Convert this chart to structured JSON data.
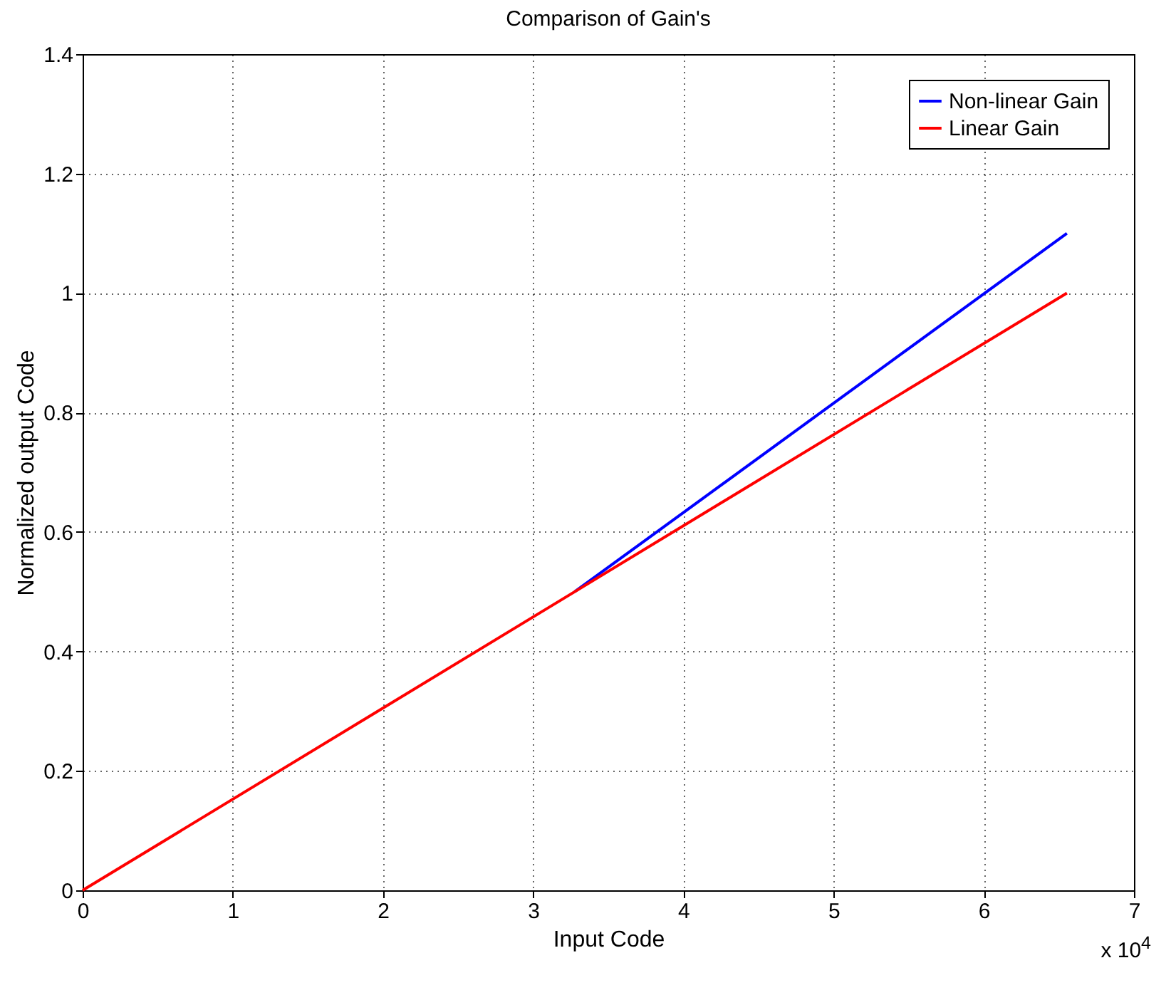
{
  "chart_data": {
    "type": "line",
    "title": "Comparison of Gain's",
    "xlabel": "Input Code",
    "ylabel": "Normalized output Code",
    "series": [
      {
        "name": "Non-linear Gain",
        "color": "#0000ff",
        "x": [
          3.2768,
          6.5535
        ],
        "values": [
          0.5,
          1.1
        ]
      },
      {
        "name": "Linear Gain",
        "color": "#ff0000",
        "x": [
          0,
          6.5535
        ],
        "values": [
          0,
          1
        ]
      }
    ],
    "xlim": [
      0,
      7
    ],
    "xticks": [
      0,
      1,
      2,
      3,
      4,
      5,
      6,
      7
    ],
    "ylim": [
      0,
      1.4
    ],
    "yticks": [
      0,
      0.2,
      0.4,
      0.6,
      0.8,
      1,
      1.2,
      1.4
    ],
    "grid": true,
    "legend": "top right",
    "line_style": "solid",
    "marker": "none",
    "annotations": [
      "x 10$^{4}$"
    ]
  }
}
